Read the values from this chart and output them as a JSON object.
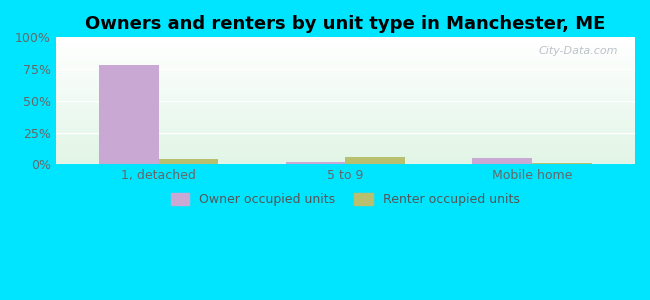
{
  "title": "Owners and renters by unit type in Manchester, ME",
  "categories": [
    "1, detached",
    "5 to 9",
    "Mobile home"
  ],
  "owner_values": [
    78,
    2,
    5
  ],
  "renter_values": [
    4,
    6,
    1
  ],
  "owner_color": "#c9a8d4",
  "renter_color": "#b8bf6e",
  "ylim": [
    0,
    100
  ],
  "yticks": [
    0,
    25,
    50,
    75,
    100
  ],
  "ytick_labels": [
    "0%",
    "25%",
    "50%",
    "75%",
    "100%"
  ],
  "outer_bg_color": "#00e5ff",
  "bar_width": 0.32,
  "legend_labels": [
    "Owner occupied units",
    "Renter occupied units"
  ],
  "title_fontsize": 13,
  "watermark": "City-Data.com"
}
